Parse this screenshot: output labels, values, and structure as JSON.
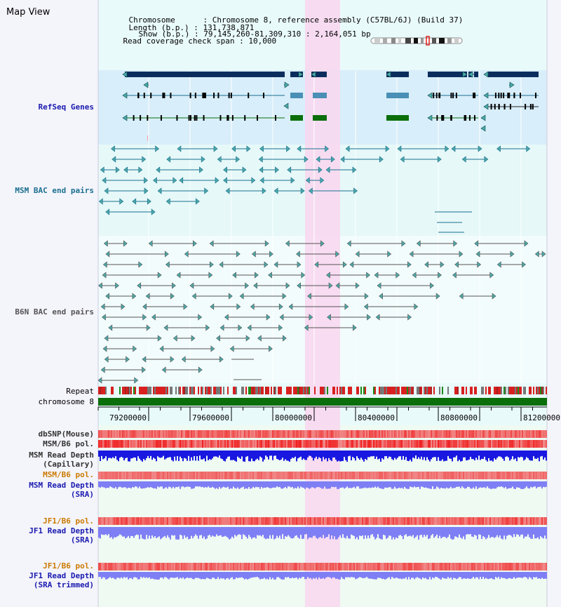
{
  "page": {
    "title": "Map View"
  },
  "header": {
    "chromosome_key": "Chromosome",
    "chromosome_value": "Chromosome 8, reference assembly (C57BL/6J) (Build 37)",
    "length_key": "Length (b.p.)",
    "length_value": "131,738,871",
    "show_key": "Show (b.p.)",
    "show_value": "79,145,260-81,309,310 : 2,164,051 bp",
    "coverage_key": "Read coverage check span",
    "coverage_value": "10,000",
    "separator": ":"
  },
  "tracks": {
    "refseq": "RefSeq Genes",
    "msm_bac": "MSM BAC end pairs",
    "b6n_bac": "B6N BAC end pairs",
    "repeat": "Repeat",
    "chromosome": "chromosome 8",
    "dbsnp": "dbSNP(Mouse)",
    "msm_b6_pol": "MSM/B6 pol.",
    "msm_depth_cap_1": "MSM Read Depth",
    "msm_depth_cap_2": "(Capillary)",
    "msm_b6_pol_2": "MSM/B6 pol.",
    "msm_depth_sra_1": "MSM Read Depth",
    "msm_depth_sra_2": "(SRA)",
    "jf1_b6_pol": "JF1/B6 pol.",
    "jf1_depth_sra_1": "JF1 Read Depth",
    "jf1_depth_sra_2": "(SRA)",
    "jf1_b6_pol_2": "JF1/B6 pol.",
    "jf1_depth_trim_1": "JF1 Read Depth",
    "jf1_depth_trim_2": "(SRA trimmed)"
  },
  "axis": {
    "ticks": [
      "79200000",
      "79600000",
      "80000000",
      "80400000",
      "80800000",
      "81200000"
    ]
  },
  "colors": {
    "refseq_bg": "#d8eefa",
    "msm_bg": "#e8f8f8",
    "selection": "#f8d8f0",
    "gene_dark": "#0b2d5e",
    "gene_blue": "#4a8fb5",
    "gene_green": "#0a6e0a",
    "msm_line": "#1a6f8f",
    "b6n_line": "#555555",
    "chromosome_bar": "#0a6e0a",
    "track_label_blue": "#1a1ab0",
    "track_label_teal": "#1a6f8f",
    "track_label_orange": "#cc7a00",
    "track_label_gray": "#333333",
    "depth_blue": "#1818e0",
    "depth_light": "#7f7ff5",
    "pol_red": "#e82020"
  }
}
